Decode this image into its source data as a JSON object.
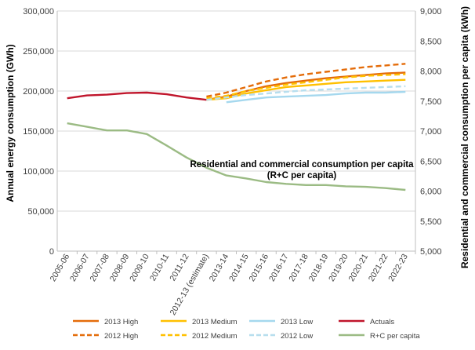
{
  "chart_data": {
    "type": "line",
    "annotation_lines": [
      "Residential and commercial consumption per capita",
      "(R+C per capita)"
    ],
    "left_axis": {
      "label": "Annual energy consumption (GWh)",
      "range": [
        0,
        300000
      ],
      "ticks": [
        0,
        50000,
        100000,
        150000,
        200000,
        250000,
        300000
      ],
      "tick_labels": [
        "0",
        "50,000",
        "100,000",
        "150,000",
        "200,000",
        "250,000",
        "300,000"
      ]
    },
    "right_axis": {
      "label": "Residential and commercial  consumption per capita (kWh)",
      "range": [
        5000,
        9000
      ],
      "ticks": [
        5000,
        5500,
        6000,
        6500,
        7000,
        7500,
        8000,
        8500,
        9000
      ],
      "tick_labels": [
        "5,000",
        "5,500",
        "6,000",
        "6,500",
        "7,000",
        "7,500",
        "8,000",
        "8,500",
        "9,000"
      ]
    },
    "categories": [
      "2005-06",
      "2006-07",
      "2007-08",
      "2008-09",
      "2009-10",
      "2010-11",
      "2011-12",
      "2012-13 (estimate)",
      "2013-14",
      "2014-15",
      "2015-16",
      "2016-17",
      "2017-18",
      "2018-19",
      "2019-20",
      "2020-21",
      "2021-22",
      "2022-23"
    ],
    "series": [
      {
        "name": "2013 High",
        "axis": "left",
        "color": "#E46C0A",
        "dash": "solid",
        "values": [
          null,
          null,
          null,
          null,
          null,
          null,
          null,
          189000,
          193000,
          200000,
          206000,
          210000,
          213000,
          216000,
          218000,
          220000,
          222000,
          223000
        ]
      },
      {
        "name": "2013 Medium",
        "axis": "left",
        "color": "#FFC000",
        "dash": "solid",
        "values": [
          null,
          null,
          null,
          null,
          null,
          null,
          null,
          189000,
          191000,
          197000,
          201000,
          205000,
          207000,
          209000,
          211000,
          212000,
          213000,
          214000
        ]
      },
      {
        "name": "2013 Low",
        "axis": "left",
        "color": "#A5D8EE",
        "dash": "solid",
        "values": [
          null,
          null,
          null,
          null,
          null,
          null,
          null,
          null,
          186000,
          189000,
          192000,
          193000,
          194000,
          195000,
          197000,
          198000,
          198000,
          199000
        ]
      },
      {
        "name": "Actuals",
        "axis": "left",
        "color": "#C0152B",
        "dash": "solid",
        "values": [
          191000,
          194500,
          195500,
          197500,
          198000,
          196000,
          192000,
          189000,
          null,
          null,
          null,
          null,
          null,
          null,
          null,
          null,
          null,
          null
        ]
      },
      {
        "name": "2012 High",
        "axis": "left",
        "color": "#E46C0A",
        "dash": "dashed",
        "values": [
          null,
          null,
          null,
          null,
          null,
          null,
          null,
          193000,
          198000,
          205000,
          212000,
          217000,
          221000,
          224000,
          227000,
          230000,
          232000,
          234000
        ]
      },
      {
        "name": "2012 Medium",
        "axis": "left",
        "color": "#FFC000",
        "dash": "dashed",
        "values": [
          null,
          null,
          null,
          null,
          null,
          null,
          null,
          191000,
          194000,
          200000,
          204000,
          208000,
          211000,
          214000,
          217000,
          219000,
          220000,
          221000
        ]
      },
      {
        "name": "2012 Low",
        "axis": "left",
        "color": "#B7DEEE",
        "dash": "dashed",
        "values": [
          null,
          null,
          null,
          null,
          null,
          null,
          null,
          189000,
          192000,
          195000,
          197000,
          199000,
          201000,
          202000,
          203000,
          204000,
          205000,
          206000
        ]
      },
      {
        "name": "R+C per capita",
        "axis": "right",
        "color": "#9BBB84",
        "dash": "solid",
        "values": [
          7130,
          7070,
          7010,
          7010,
          6950,
          6760,
          6560,
          6390,
          6260,
          6210,
          6150,
          6120,
          6100,
          6100,
          6080,
          6070,
          6050,
          6020
        ]
      }
    ],
    "legend": {
      "placement": "bottom",
      "order": [
        "2013 High",
        "2013 Medium",
        "2013 Low",
        "Actuals",
        "2012 High",
        "2012 Medium",
        "2012 Low",
        "R+C per capita"
      ]
    }
  }
}
